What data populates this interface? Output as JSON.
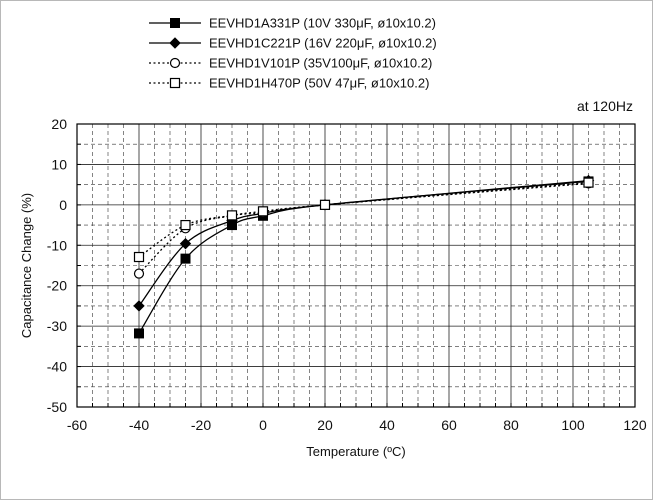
{
  "chart_data": {
    "type": "line",
    "title": "",
    "xlabel": "Temperature (ºC)",
    "ylabel": "Capacitance Change (%)",
    "annotation": "at 120Hz",
    "xlim": [
      -60,
      120
    ],
    "ylim": [
      -50,
      20
    ],
    "x_ticks": [
      -60,
      -40,
      -20,
      0,
      20,
      40,
      60,
      80,
      100,
      120
    ],
    "y_ticks": [
      -50,
      -40,
      -30,
      -20,
      -10,
      0,
      10,
      20
    ],
    "grid": true,
    "legend_position": "top",
    "series": [
      {
        "name": "EEVHD1A331P (10V 330μF, ø10x10.2)",
        "marker": "filled-square",
        "line": "solid",
        "points": [
          {
            "x": -40,
            "y": -31.8
          },
          {
            "x": -25,
            "y": -13.3
          },
          {
            "x": -10,
            "y": -5.0
          },
          {
            "x": 0,
            "y": -2.7
          },
          {
            "x": 20,
            "y": 0
          },
          {
            "x": 105,
            "y": 5.8
          }
        ]
      },
      {
        "name": "EEVHD1C221P (16V 220μF, ø10x10.2)",
        "marker": "filled-diamond",
        "line": "solid",
        "points": [
          {
            "x": -40,
            "y": -25
          },
          {
            "x": -25,
            "y": -9.6
          },
          {
            "x": -10,
            "y": -3.9
          },
          {
            "x": 0,
            "y": -2.1
          },
          {
            "x": 20,
            "y": 0
          },
          {
            "x": 105,
            "y": 6.0
          }
        ]
      },
      {
        "name": "EEVHD1V101P (35V100μF, ø10x10.2)",
        "marker": "open-circle",
        "line": "dotted",
        "points": [
          {
            "x": -40,
            "y": -17
          },
          {
            "x": -25,
            "y": -5.8
          },
          {
            "x": -10,
            "y": -2.7
          },
          {
            "x": 0,
            "y": -1.9
          },
          {
            "x": 20,
            "y": 0
          },
          {
            "x": 105,
            "y": 5.3
          }
        ]
      },
      {
        "name": "EEVHD1H470P (50V 47μF, ø10x10.2)",
        "marker": "open-square",
        "line": "dotted",
        "points": [
          {
            "x": -40,
            "y": -12.9
          },
          {
            "x": -25,
            "y": -5.0
          },
          {
            "x": -10,
            "y": -2.6
          },
          {
            "x": 0,
            "y": -1.6
          },
          {
            "x": 20,
            "y": 0
          },
          {
            "x": 105,
            "y": 5.5
          }
        ]
      }
    ]
  }
}
